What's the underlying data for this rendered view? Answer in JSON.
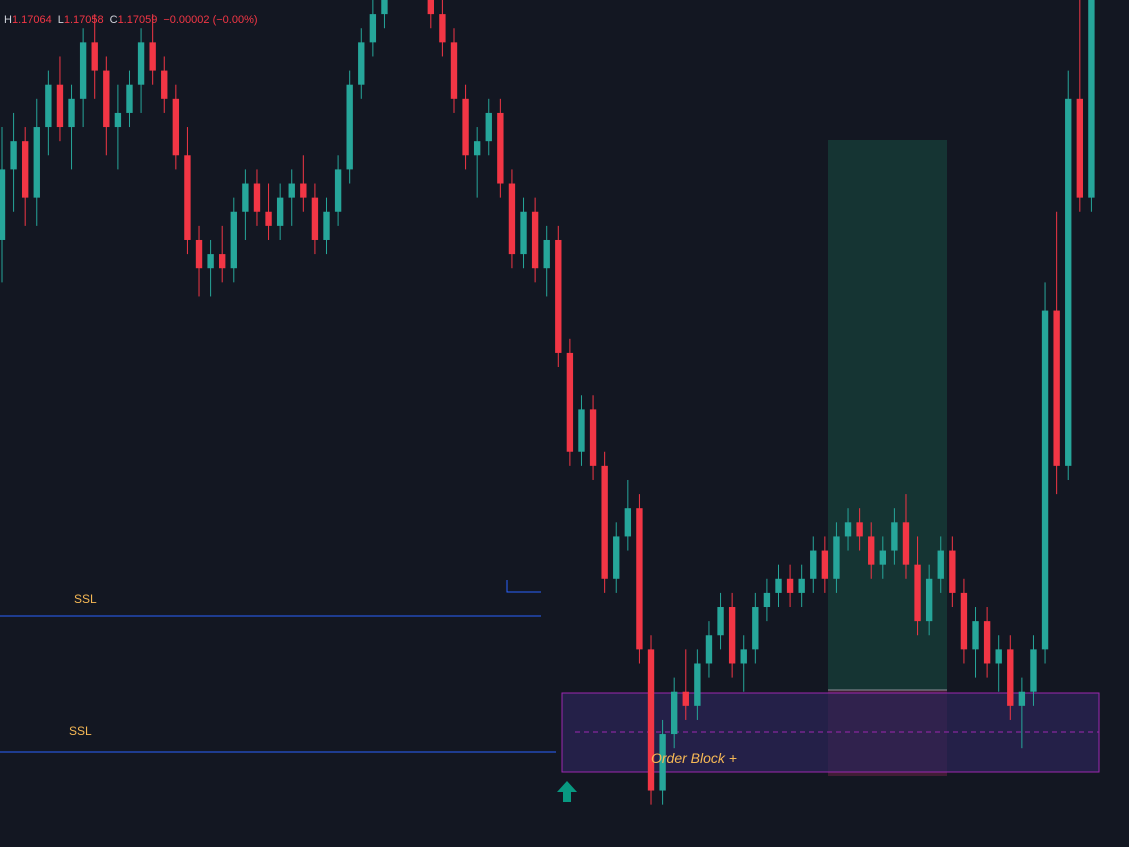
{
  "legend": {
    "high_key": "H",
    "high_value": "1.17064",
    "low_key": "L",
    "low_value": "1.17058",
    "close_key": "C",
    "close_value": "1.17059",
    "change": "−0.00002 (−0.00%)"
  },
  "colors": {
    "background": "#131722",
    "bull": "#26a69a",
    "bear": "#f23645",
    "ssl_line": "#2962ff",
    "ssl_label": "#f7b955",
    "order_block_fill": "#2b2456",
    "order_block_border": "#9c27b0",
    "order_block_label": "#f7b955",
    "long_target_fill": "#163a36",
    "long_stop_fill": "#4a1f38",
    "signal_arrow": "#089981"
  },
  "labels": {
    "ssl_upper": "SSL",
    "ssl_lower": "SSL",
    "order_block": "Order Block +"
  },
  "icons": {
    "buy_signal": "up-arrow-icon"
  },
  "chart_data": {
    "type": "candlestick",
    "x_axis_visible": false,
    "y_axis_visible": false,
    "grid": false,
    "y_range": [
      1.1685,
      1.1745
    ],
    "candles": [
      [
        1.1728,
        1.1736,
        1.1725,
        1.1733
      ],
      [
        1.1733,
        1.1737,
        1.173,
        1.1735
      ],
      [
        1.1735,
        1.1736,
        1.1729,
        1.1731
      ],
      [
        1.1731,
        1.1738,
        1.1729,
        1.1736
      ],
      [
        1.1736,
        1.174,
        1.1734,
        1.1739
      ],
      [
        1.1739,
        1.1741,
        1.1735,
        1.1736
      ],
      [
        1.1736,
        1.1739,
        1.1733,
        1.1738
      ],
      [
        1.1738,
        1.1743,
        1.1736,
        1.1742
      ],
      [
        1.1742,
        1.1744,
        1.1738,
        1.174
      ],
      [
        1.174,
        1.1741,
        1.1734,
        1.1736
      ],
      [
        1.1736,
        1.1739,
        1.1733,
        1.1737
      ],
      [
        1.1737,
        1.174,
        1.1736,
        1.1739
      ],
      [
        1.1739,
        1.1743,
        1.1737,
        1.1742
      ],
      [
        1.1742,
        1.1744,
        1.1739,
        1.174
      ],
      [
        1.174,
        1.1741,
        1.1737,
        1.1738
      ],
      [
        1.1738,
        1.1739,
        1.1733,
        1.1734
      ],
      [
        1.1734,
        1.1736,
        1.1727,
        1.1728
      ],
      [
        1.1728,
        1.1729,
        1.1724,
        1.1726
      ],
      [
        1.1726,
        1.1728,
        1.1724,
        1.1727
      ],
      [
        1.1727,
        1.1729,
        1.1725,
        1.1726
      ],
      [
        1.1726,
        1.1731,
        1.1725,
        1.173
      ],
      [
        1.173,
        1.1733,
        1.1728,
        1.1732
      ],
      [
        1.1732,
        1.1733,
        1.1729,
        1.173
      ],
      [
        1.173,
        1.1732,
        1.1728,
        1.1729
      ],
      [
        1.1729,
        1.1732,
        1.1728,
        1.1731
      ],
      [
        1.1731,
        1.1733,
        1.1729,
        1.1732
      ],
      [
        1.1732,
        1.1734,
        1.173,
        1.1731
      ],
      [
        1.1731,
        1.1732,
        1.1727,
        1.1728
      ],
      [
        1.1728,
        1.1731,
        1.1727,
        1.173
      ],
      [
        1.173,
        1.1734,
        1.1729,
        1.1733
      ],
      [
        1.1733,
        1.174,
        1.1732,
        1.1739
      ],
      [
        1.1739,
        1.1743,
        1.1738,
        1.1742
      ],
      [
        1.1742,
        1.1745,
        1.1741,
        1.1744
      ],
      [
        1.1744,
        1.1748,
        1.1743,
        1.1747
      ],
      [
        1.1747,
        1.1749,
        1.1745,
        1.1748
      ],
      [
        1.1748,
        1.1749,
        1.1746,
        1.1747
      ],
      [
        1.1747,
        1.1748,
        1.1745,
        1.1746
      ],
      [
        1.1746,
        1.1747,
        1.1743,
        1.1744
      ],
      [
        1.1744,
        1.1745,
        1.1741,
        1.1742
      ],
      [
        1.1742,
        1.1743,
        1.1737,
        1.1738
      ],
      [
        1.1738,
        1.1739,
        1.1733,
        1.1734
      ],
      [
        1.1734,
        1.1736,
        1.1731,
        1.1735
      ],
      [
        1.1735,
        1.1738,
        1.1734,
        1.1737
      ],
      [
        1.1737,
        1.1738,
        1.1731,
        1.1732
      ],
      [
        1.1732,
        1.1733,
        1.1726,
        1.1727
      ],
      [
        1.1727,
        1.1731,
        1.1726,
        1.173
      ],
      [
        1.173,
        1.1731,
        1.1725,
        1.1726
      ],
      [
        1.1726,
        1.1729,
        1.1724,
        1.1728
      ],
      [
        1.1728,
        1.1729,
        1.1719,
        1.172
      ],
      [
        1.172,
        1.1721,
        1.1712,
        1.1713
      ],
      [
        1.1713,
        1.1717,
        1.1712,
        1.1716
      ],
      [
        1.1716,
        1.1717,
        1.1711,
        1.1712
      ],
      [
        1.1712,
        1.1713,
        1.1703,
        1.1704
      ],
      [
        1.1704,
        1.1708,
        1.1703,
        1.1707
      ],
      [
        1.1707,
        1.1711,
        1.1706,
        1.1709
      ],
      [
        1.1709,
        1.171,
        1.1698,
        1.1699
      ],
      [
        1.1699,
        1.17,
        1.1688,
        1.1689
      ],
      [
        1.1689,
        1.1694,
        1.1688,
        1.1693
      ],
      [
        1.1693,
        1.1697,
        1.1692,
        1.1696
      ],
      [
        1.1696,
        1.1699,
        1.1694,
        1.1695
      ],
      [
        1.1695,
        1.1699,
        1.1694,
        1.1698
      ],
      [
        1.1698,
        1.1701,
        1.1697,
        1.17
      ],
      [
        1.17,
        1.1703,
        1.1699,
        1.1702
      ],
      [
        1.1702,
        1.1703,
        1.1697,
        1.1698
      ],
      [
        1.1698,
        1.17,
        1.1696,
        1.1699
      ],
      [
        1.1699,
        1.1703,
        1.1698,
        1.1702
      ],
      [
        1.1702,
        1.1704,
        1.1701,
        1.1703
      ],
      [
        1.1703,
        1.1705,
        1.1702,
        1.1704
      ],
      [
        1.1704,
        1.1705,
        1.1702,
        1.1703
      ],
      [
        1.1703,
        1.1705,
        1.1702,
        1.1704
      ],
      [
        1.1704,
        1.1707,
        1.1703,
        1.1706
      ],
      [
        1.1706,
        1.1707,
        1.1703,
        1.1704
      ],
      [
        1.1704,
        1.1708,
        1.1703,
        1.1707
      ],
      [
        1.1707,
        1.1709,
        1.1706,
        1.1708
      ],
      [
        1.1708,
        1.1709,
        1.1706,
        1.1707
      ],
      [
        1.1707,
        1.1708,
        1.1704,
        1.1705
      ],
      [
        1.1705,
        1.1707,
        1.1704,
        1.1706
      ],
      [
        1.1706,
        1.1709,
        1.1705,
        1.1708
      ],
      [
        1.1708,
        1.171,
        1.1704,
        1.1705
      ],
      [
        1.1705,
        1.1707,
        1.17,
        1.1701
      ],
      [
        1.1701,
        1.1705,
        1.17,
        1.1704
      ],
      [
        1.1704,
        1.1707,
        1.1703,
        1.1706
      ],
      [
        1.1706,
        1.1707,
        1.1702,
        1.1703
      ],
      [
        1.1703,
        1.1704,
        1.1698,
        1.1699
      ],
      [
        1.1699,
        1.1702,
        1.1697,
        1.1701
      ],
      [
        1.1701,
        1.1702,
        1.1697,
        1.1698
      ],
      [
        1.1698,
        1.17,
        1.1696,
        1.1699
      ],
      [
        1.1699,
        1.17,
        1.1694,
        1.1695
      ],
      [
        1.1695,
        1.1697,
        1.1692,
        1.1696
      ],
      [
        1.1696,
        1.17,
        1.1695,
        1.1699
      ],
      [
        1.1699,
        1.1725,
        1.1698,
        1.1723
      ],
      [
        1.1723,
        1.173,
        1.171,
        1.1712
      ],
      [
        1.1712,
        1.174,
        1.1711,
        1.1738
      ],
      [
        1.1738,
        1.1745,
        1.173,
        1.1731
      ],
      [
        1.1731,
        1.175,
        1.173,
        1.1749
      ],
      [
        1.1749,
        1.1762,
        1.1745,
        1.176
      ]
    ]
  }
}
